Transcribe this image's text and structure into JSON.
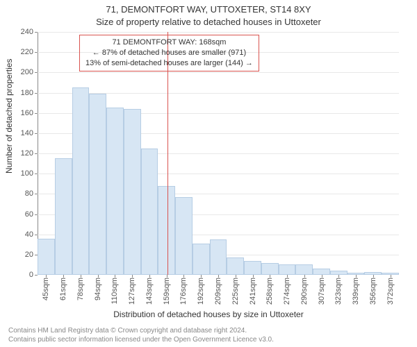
{
  "chart": {
    "type": "histogram",
    "title_main": "71, DEMONTFORT WAY, UTTOXETER, ST14 8XY",
    "title_sub": "Size of property relative to detached houses in Uttoxeter",
    "ylabel": "Number of detached properties",
    "xlabel": "Distribution of detached houses by size in Uttoxeter",
    "ylim": [
      0,
      240
    ],
    "ytick_step": 20,
    "yticks": [
      0,
      20,
      40,
      60,
      80,
      100,
      120,
      140,
      160,
      180,
      200,
      220,
      240
    ],
    "categories": [
      "45sqm",
      "61sqm",
      "78sqm",
      "94sqm",
      "110sqm",
      "127sqm",
      "143sqm",
      "159sqm",
      "176sqm",
      "192sqm",
      "209sqm",
      "225sqm",
      "241sqm",
      "258sqm",
      "274sqm",
      "290sqm",
      "307sqm",
      "323sqm",
      "339sqm",
      "356sqm",
      "372sqm"
    ],
    "values": [
      36,
      115,
      185,
      179,
      165,
      164,
      125,
      88,
      77,
      31,
      35,
      17,
      14,
      12,
      10,
      10,
      6,
      4,
      2,
      3,
      2
    ],
    "bar_fill": "#d7e6f4",
    "bar_stroke": "#b6cde4",
    "background_color": "#ffffff",
    "grid_color": "#e8e8e8",
    "axis_color": "#888888",
    "label_fontsize": 12,
    "tick_fontsize": 11,
    "marker": {
      "line_color": "#d9534f",
      "bin_index": 7,
      "position_in_bin": 0.55,
      "title": "71 DEMONTFORT WAY: 168sqm",
      "line2": "← 87% of detached houses are smaller (971)",
      "line3": "13% of semi-detached houses are larger (144) →",
      "box_border": "#d9534f"
    }
  },
  "footer": {
    "line1": "Contains HM Land Registry data © Crown copyright and database right 2024.",
    "line2": "Contains public sector information licensed under the Open Government Licence v3.0."
  }
}
